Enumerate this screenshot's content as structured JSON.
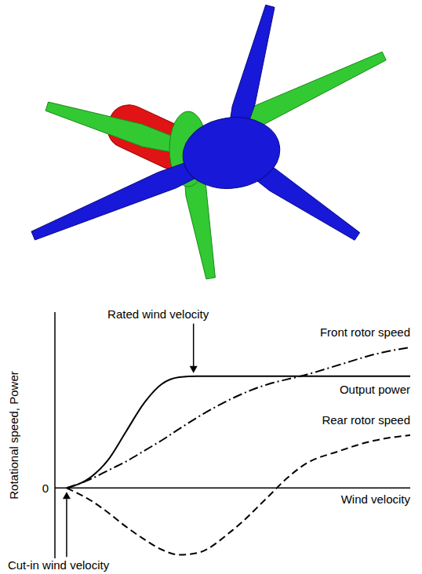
{
  "chart_data": {
    "type": "line",
    "x_label": "Wind velocity",
    "y_label": "Rotational speed, Power",
    "x": [
      0.33,
      1,
      1.5,
      2,
      2.5,
      3,
      3.5,
      4,
      5,
      6,
      6.5,
      7,
      8,
      9,
      10
    ],
    "xlim": [
      0,
      10
    ],
    "xticks": [],
    "ylim": [
      -2,
      5
    ],
    "yticks": [
      0
    ],
    "tick_labels": "y",
    "grid": false,
    "series": [
      {
        "name": "Output power",
        "color": "#000000",
        "line_style": "solid",
        "values": [
          0,
          0.3,
          0.8,
          1.6,
          2.4,
          2.95,
          3.15,
          3.18,
          3.18,
          3.18,
          3.18,
          3.18,
          3.18,
          3.18,
          3.18
        ]
      },
      {
        "name": "Front rotor speed",
        "color": "#000000",
        "line_style": "dashdot",
        "values": [
          0,
          0.25,
          0.5,
          0.75,
          1.05,
          1.35,
          1.68,
          2.0,
          2.55,
          2.95,
          3.08,
          3.2,
          3.5,
          3.8,
          4.0
        ]
      },
      {
        "name": "Rear rotor speed",
        "color": "#000000",
        "line_style": "dashed",
        "values": [
          0,
          -0.35,
          -0.7,
          -1.1,
          -1.45,
          -1.75,
          -1.9,
          -1.85,
          -1.2,
          -0.25,
          0.25,
          0.65,
          1.05,
          1.35,
          1.5
        ]
      }
    ],
    "annotations": [
      {
        "text": "Rated wind velocity",
        "x": 3.9,
        "y": 3.18
      },
      {
        "text": "Cut-in wind velocity",
        "x": 0.33,
        "y": 0
      }
    ]
  }
}
